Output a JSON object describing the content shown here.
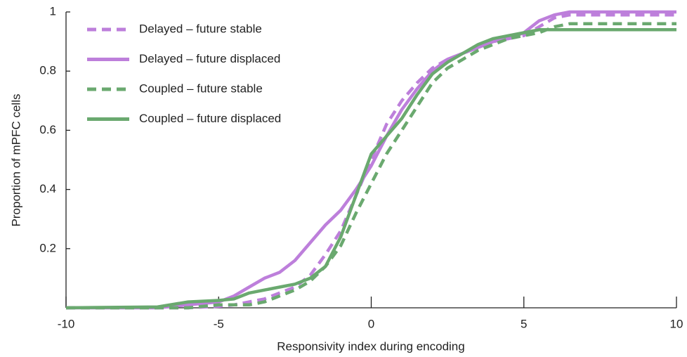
{
  "chart_data": {
    "type": "line",
    "x_label": "Responsivity index during encoding",
    "y_label": "Proportion of mPFC cells",
    "xlim": [
      -10,
      10
    ],
    "ylim": [
      0,
      1
    ],
    "xticks": [
      -10,
      -5,
      0,
      5,
      10
    ],
    "yticks": [
      0.2,
      0.4,
      0.6,
      0.8,
      1
    ],
    "legend": "upper-left",
    "x": [
      -10,
      -7,
      -6,
      -5,
      -4.5,
      -4,
      -3.5,
      -3,
      -2.5,
      -2,
      -1.5,
      -1,
      -0.5,
      0,
      0.5,
      1,
      1.5,
      2,
      2.5,
      3,
      3.5,
      4,
      4.5,
      5,
      5.5,
      6,
      6.5,
      7,
      10
    ],
    "series": [
      {
        "name": "Delayed – future stable",
        "color": "#bd7fdb",
        "dashed": true,
        "values": [
          0,
          0,
          0,
          0.005,
          0.01,
          0.02,
          0.03,
          0.05,
          0.07,
          0.11,
          0.18,
          0.26,
          0.38,
          0.5,
          0.62,
          0.7,
          0.76,
          0.81,
          0.84,
          0.86,
          0.88,
          0.9,
          0.91,
          0.92,
          0.95,
          0.98,
          0.99,
          0.99,
          0.99
        ]
      },
      {
        "name": "Delayed – future displaced",
        "color": "#bd7fdb",
        "dashed": false,
        "values": [
          0,
          0,
          0.01,
          0.02,
          0.04,
          0.07,
          0.1,
          0.12,
          0.16,
          0.22,
          0.28,
          0.33,
          0.4,
          0.48,
          0.58,
          0.67,
          0.74,
          0.8,
          0.84,
          0.86,
          0.88,
          0.9,
          0.91,
          0.93,
          0.97,
          0.99,
          1,
          1,
          1
        ]
      },
      {
        "name": "Coupled – future stable",
        "color": "#6aa96f",
        "dashed": true,
        "values": [
          0,
          0,
          0,
          0.01,
          0.01,
          0.01,
          0.02,
          0.04,
          0.06,
          0.09,
          0.14,
          0.21,
          0.32,
          0.42,
          0.52,
          0.6,
          0.68,
          0.76,
          0.81,
          0.84,
          0.87,
          0.89,
          0.91,
          0.92,
          0.93,
          0.95,
          0.96,
          0.96,
          0.96
        ]
      },
      {
        "name": "Coupled – future displaced",
        "color": "#6aa96f",
        "dashed": false,
        "values": [
          0,
          0.003,
          0.02,
          0.025,
          0.03,
          0.05,
          0.06,
          0.07,
          0.08,
          0.1,
          0.14,
          0.24,
          0.38,
          0.52,
          0.58,
          0.64,
          0.72,
          0.79,
          0.83,
          0.86,
          0.89,
          0.91,
          0.92,
          0.93,
          0.94,
          0.94,
          0.94,
          0.94,
          0.94
        ]
      }
    ]
  }
}
